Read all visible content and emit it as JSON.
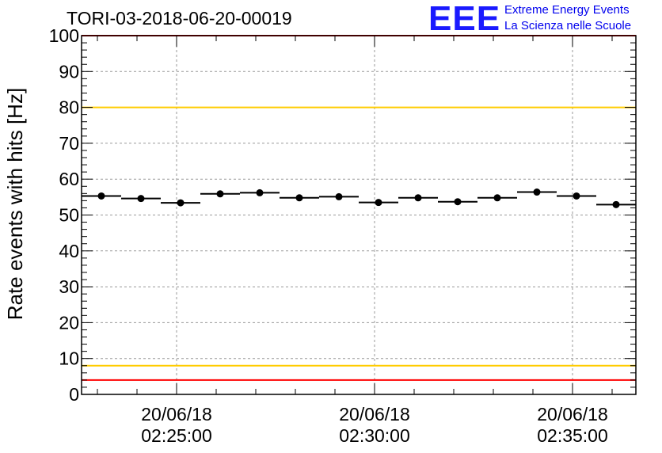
{
  "logo": {
    "mark": "EEE",
    "line1": "Extreme Energy Events",
    "line2": "La Scienza nelle Scuole"
  },
  "chart_data": {
    "type": "scatter",
    "title": "TORI-03-2018-06-20-00019",
    "ylabel": "Rate events with hits [Hz]",
    "xlabel": "",
    "ylim": [
      0,
      100
    ],
    "yticks": [
      0,
      10,
      20,
      30,
      40,
      50,
      60,
      70,
      80,
      90,
      100
    ],
    "xlim_minutes": [
      22.6,
      36.6
    ],
    "xticks": [
      {
        "minutes": 25,
        "date": "20/06/18",
        "time": "02:25:00"
      },
      {
        "minutes": 30,
        "date": "20/06/18",
        "time": "02:30:00"
      },
      {
        "minutes": 35,
        "date": "20/06/18",
        "time": "02:35:00"
      }
    ],
    "grid": true,
    "series": [
      {
        "name": "rate",
        "bin_width_minutes": 1.0,
        "x_minutes": [
          23.1,
          24.1,
          25.1,
          26.1,
          27.1,
          28.1,
          29.1,
          30.1,
          31.1,
          32.1,
          33.1,
          34.1,
          35.1,
          36.1
        ],
        "values": [
          55.3,
          54.6,
          53.4,
          55.9,
          56.2,
          54.8,
          55.1,
          53.5,
          54.8,
          53.7,
          54.8,
          56.4,
          55.3,
          52.9
        ]
      }
    ],
    "reference_lines": [
      {
        "y": 100,
        "color": "#ff0000"
      },
      {
        "y": 80,
        "color": "#ffcc00"
      },
      {
        "y": 8,
        "color": "#ffcc00"
      },
      {
        "y": 4,
        "color": "#ff0000"
      }
    ]
  }
}
